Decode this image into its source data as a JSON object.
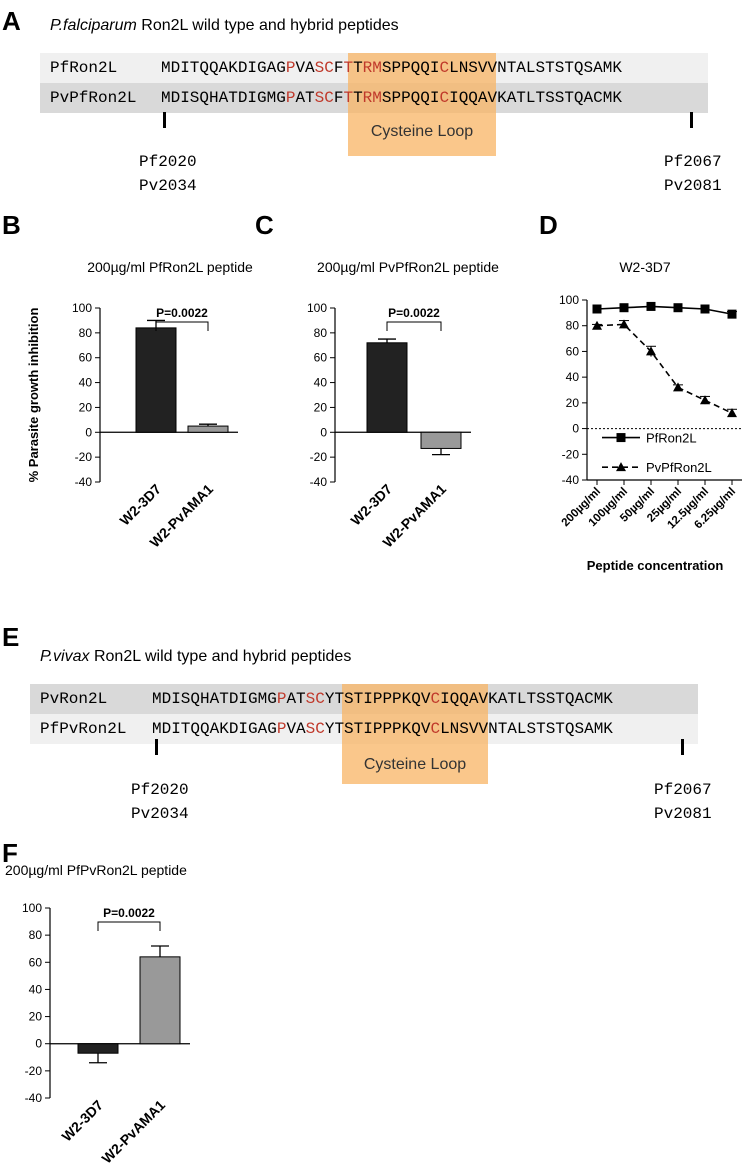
{
  "panel_a": {
    "letter": "A",
    "title_italic": "P.falciparum",
    "title_rest": " Ron2L wild type and hybrid peptides",
    "rows": [
      {
        "name": "PfRon2L",
        "segments": [
          {
            "t": "MDITQQAKDIGAG",
            "red": false
          },
          {
            "t": "P",
            "red": true
          },
          {
            "t": "VA",
            "red": false
          },
          {
            "t": "SC",
            "red": true
          },
          {
            "t": "F",
            "red": false
          },
          {
            "t": "T",
            "red": true
          },
          {
            "t": "T",
            "red": false
          },
          {
            "t": "RM",
            "red": true
          },
          {
            "t": "SPPQQI",
            "red": false
          },
          {
            "t": "C",
            "red": true
          },
          {
            "t": "LNSVVNTALSTSTQSAMK",
            "red": false
          }
        ]
      },
      {
        "name": "PvPfRon2L",
        "segments": [
          {
            "t": "MDISQHATDIGMG",
            "red": false
          },
          {
            "t": "P",
            "red": true
          },
          {
            "t": "AT",
            "red": false
          },
          {
            "t": "SC",
            "red": true
          },
          {
            "t": "F",
            "red": false
          },
          {
            "t": "T",
            "red": true
          },
          {
            "t": "T",
            "red": false
          },
          {
            "t": "RM",
            "red": true
          },
          {
            "t": "SPPQQI",
            "red": false
          },
          {
            "t": "C",
            "red": true
          },
          {
            "t": "IQQAVKATLTSSTQACMK",
            "red": false
          }
        ]
      }
    ],
    "loop_label": "Cysteine Loop",
    "left_pos": [
      "Pf2020",
      "Pv2034"
    ],
    "right_pos": [
      "Pf2067",
      "Pv2081"
    ]
  },
  "panel_e": {
    "letter": "E",
    "title_italic": "P.vivax",
    "title_rest": " Ron2L wild type and hybrid peptides",
    "rows": [
      {
        "name": "PvRon2L",
        "segments": [
          {
            "t": "MDISQHATDIGMG",
            "red": false
          },
          {
            "t": "P",
            "red": true
          },
          {
            "t": "AT",
            "red": false
          },
          {
            "t": "SC",
            "red": true
          },
          {
            "t": "YTSTIPPPKQV",
            "red": false
          },
          {
            "t": "C",
            "red": true
          },
          {
            "t": "IQQAVKATLTSSTQACMK",
            "red": false
          }
        ]
      },
      {
        "name": "PfPvRon2L",
        "segments": [
          {
            "t": "MDITQQAKDIGAG",
            "red": false
          },
          {
            "t": "P",
            "red": true
          },
          {
            "t": "VA",
            "red": false
          },
          {
            "t": "SC",
            "red": true
          },
          {
            "t": "YTSTIPPPKQV",
            "red": false
          },
          {
            "t": "C",
            "red": true
          },
          {
            "t": "LNSVVNTALSTSTQSAMK",
            "red": false
          }
        ]
      }
    ],
    "loop_label": "Cysteine Loop",
    "left_pos": [
      "Pf2020",
      "Pv2034"
    ],
    "right_pos": [
      "Pf2067",
      "Pv2081"
    ]
  },
  "colors": {
    "red_residue": "#c0392b",
    "loop": "#f8b464",
    "bar_dark": "#222222",
    "bar_grey": "#999999",
    "row_dark_bg": "#d9d9d9",
    "row_light_bg": "#f0f0f0"
  },
  "ylabel": "% Parasite growth inhibition",
  "chart_data": [
    {
      "panel": "B",
      "type": "bar",
      "title": "200µg/ml PfRon2L peptide",
      "categories": [
        "W2-3D7",
        "W2-PvAMA1"
      ],
      "values": [
        84,
        5
      ],
      "errors": [
        6,
        1.5
      ],
      "colors": [
        "#222222",
        "#999999"
      ],
      "ylim": [
        -40,
        100
      ],
      "yticks": [
        "100",
        "80",
        "60",
        "40",
        "20",
        "0",
        "-20",
        "-40"
      ],
      "annotation": "P=0.0022",
      "ylabel": "% Parasite growth inhibition"
    },
    {
      "panel": "C",
      "type": "bar",
      "title": "200µg/ml PvPfRon2L peptide",
      "categories": [
        "W2-3D7",
        "W2-PvAMA1"
      ],
      "values": [
        72,
        -13
      ],
      "errors": [
        3,
        5
      ],
      "colors": [
        "#222222",
        "#999999"
      ],
      "ylim": [
        -40,
        100
      ],
      "yticks": [
        "100",
        "80",
        "60",
        "40",
        "20",
        "0",
        "-20",
        "-40"
      ],
      "annotation": "P=0.0022"
    },
    {
      "panel": "D",
      "type": "line",
      "title": "W2-3D7",
      "categories": [
        "200µg/ml",
        "100µg/ml",
        "50µg/ml",
        "25µg/ml",
        "12.5µg/ml",
        "6.25µg/ml"
      ],
      "series": [
        {
          "name": "PfRon2L",
          "values": [
            93,
            94,
            95,
            94,
            93,
            89
          ],
          "errors": [
            0,
            0,
            0,
            0,
            0,
            2
          ],
          "marker": "square",
          "dash": false
        },
        {
          "name": "PvPfRon2L",
          "values": [
            80,
            81,
            60,
            32,
            22,
            12
          ],
          "errors": [
            1,
            3,
            4,
            2,
            3,
            3
          ],
          "marker": "triangle",
          "dash": true
        }
      ],
      "ylim": [
        -40,
        100
      ],
      "yticks": [
        "100",
        "80",
        "60",
        "40",
        "20",
        "0",
        "-20",
        "-40"
      ],
      "xlabel": "Peptide concentration",
      "legend": "bottom-left"
    },
    {
      "panel": "F",
      "type": "bar",
      "title": "200µg/ml PfPvRon2L peptide",
      "categories": [
        "W2-3D7",
        "W2-PvAMA1"
      ],
      "values": [
        -7,
        64
      ],
      "errors": [
        7,
        8
      ],
      "colors": [
        "#222222",
        "#999999"
      ],
      "ylim": [
        -40,
        100
      ],
      "yticks": [
        "100",
        "80",
        "60",
        "40",
        "20",
        "0",
        "-20",
        "-40"
      ],
      "annotation": "P=0.0022"
    }
  ],
  "letters": {
    "b": "B",
    "c": "C",
    "d": "D",
    "f": "F"
  }
}
